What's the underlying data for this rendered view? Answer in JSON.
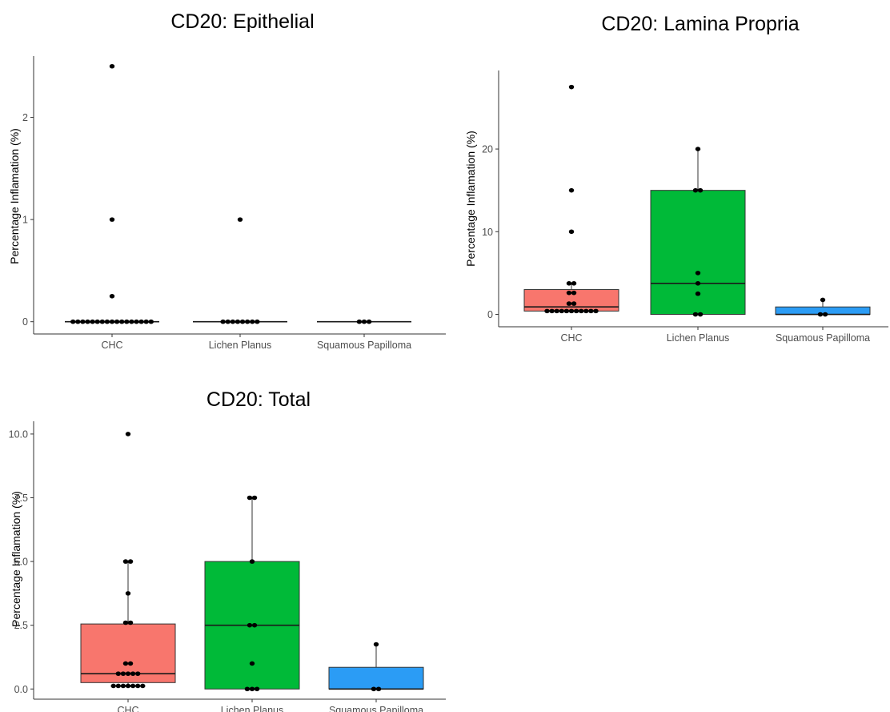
{
  "colors": {
    "CHC": "#F8766D",
    "Lichen Planus": "#00BA38",
    "Squamous Papilloma": "#2B9CF5"
  },
  "chart_data": [
    {
      "id": "epithelial",
      "type": "box",
      "title": "CD20: Epithelial",
      "xlabel": "",
      "ylabel": "Percentage Inflamation (%)",
      "categories": [
        "CHC",
        "Lichen Planus",
        "Squamous Papilloma"
      ],
      "yticks": [
        0,
        1,
        2
      ],
      "ytick_labels": [
        "0",
        "1",
        "2"
      ],
      "ylim": [
        -0.12,
        2.6
      ],
      "grid": false,
      "boxes": [
        {
          "category": "CHC",
          "q1": 0,
          "median": 0,
          "q3": 0,
          "whisker_low": 0,
          "whisker_high": 0
        },
        {
          "category": "Lichen Planus",
          "q1": 0,
          "median": 0,
          "q3": 0,
          "whisker_low": 0,
          "whisker_high": 0
        },
        {
          "category": "Squamous Papilloma",
          "q1": 0,
          "median": 0,
          "q3": 0,
          "whisker_low": 0,
          "whisker_high": 0
        }
      ],
      "points": [
        {
          "category": "CHC",
          "values": [
            2.5,
            1.0,
            0.25,
            0,
            0,
            0,
            0,
            0,
            0,
            0,
            0,
            0,
            0,
            0,
            0,
            0,
            0,
            0,
            0,
            0
          ]
        },
        {
          "category": "Lichen Planus",
          "values": [
            1.0,
            0,
            0,
            0,
            0,
            0,
            0,
            0,
            0
          ]
        },
        {
          "category": "Squamous Papilloma",
          "values": [
            0,
            0,
            0
          ]
        }
      ]
    },
    {
      "id": "lamina",
      "type": "box",
      "title": "CD20: Lamina Propria",
      "xlabel": "",
      "ylabel": "Percentage Inflamation (%)",
      "categories": [
        "CHC",
        "Lichen Planus",
        "Squamous Papilloma"
      ],
      "yticks": [
        0,
        10,
        20
      ],
      "ytick_labels": [
        "0",
        "10",
        "20"
      ],
      "ylim": [
        -1.5,
        29.5
      ],
      "grid": false,
      "boxes": [
        {
          "category": "CHC",
          "q1": 0.4,
          "median": 0.9,
          "q3": 3.0,
          "whisker_low": 0.4,
          "whisker_high": 3.75
        },
        {
          "category": "Lichen Planus",
          "q1": 0,
          "median": 3.75,
          "q3": 15.0,
          "whisker_low": 0,
          "whisker_high": 20.0
        },
        {
          "category": "Squamous Papilloma",
          "q1": 0,
          "median": 0,
          "q3": 0.9,
          "whisker_low": 0,
          "whisker_high": 1.75
        }
      ],
      "points": [
        {
          "category": "CHC",
          "values": [
            27.5,
            15,
            10,
            3.75,
            3.75,
            2.6,
            2.6,
            1.3,
            1.3,
            0.4,
            0.4,
            0.4,
            0.4,
            0.4,
            0.4,
            0.4,
            0.4,
            0.4,
            0.4,
            0.4
          ]
        },
        {
          "category": "Lichen Planus",
          "values": [
            20,
            15,
            15,
            5,
            3.75,
            2.5,
            0,
            0
          ]
        },
        {
          "category": "Squamous Papilloma",
          "values": [
            1.75,
            0,
            0
          ]
        }
      ]
    },
    {
      "id": "total",
      "type": "box",
      "title": "CD20: Total",
      "xlabel": "",
      "ylabel": "Percentage Inflamation (%)",
      "categories": [
        "CHC",
        "Lichen Planus",
        "Squamous Papilloma"
      ],
      "yticks": [
        0,
        2.5,
        5,
        7.5,
        10
      ],
      "ytick_labels": [
        "0.0",
        "2.5",
        "5.0",
        "7.5",
        "10.0"
      ],
      "ylim": [
        -0.4,
        10.5
      ],
      "grid": false,
      "boxes": [
        {
          "category": "CHC",
          "q1": 0.25,
          "median": 0.6,
          "q3": 2.55,
          "whisker_low": 0.12,
          "whisker_high": 5.0
        },
        {
          "category": "Lichen Planus",
          "q1": 0,
          "median": 2.5,
          "q3": 5.0,
          "whisker_low": 0,
          "whisker_high": 7.5
        },
        {
          "category": "Squamous Papilloma",
          "q1": 0,
          "median": 0,
          "q3": 0.85,
          "whisker_low": 0,
          "whisker_high": 1.75
        }
      ],
      "points": [
        {
          "category": "CHC",
          "values": [
            10.0,
            5.0,
            5.0,
            3.75,
            2.6,
            2.6,
            1.0,
            1.0,
            0.6,
            0.6,
            0.6,
            0.6,
            0.6,
            0.12,
            0.12,
            0.12,
            0.12,
            0.12,
            0.12,
            0.12
          ]
        },
        {
          "category": "Lichen Planus",
          "values": [
            7.5,
            7.5,
            5.0,
            2.5,
            2.5,
            1.0,
            0,
            0,
            0
          ]
        },
        {
          "category": "Squamous Papilloma",
          "values": [
            1.75,
            0,
            0
          ]
        }
      ]
    }
  ]
}
